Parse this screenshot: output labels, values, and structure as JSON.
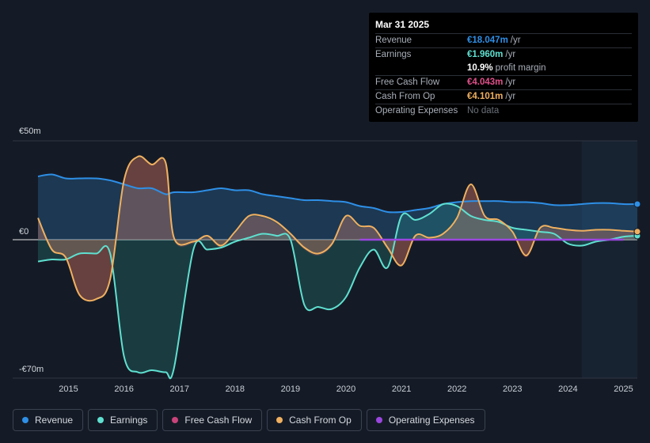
{
  "tooltip": {
    "date": "Mar 31 2025",
    "rows": [
      {
        "label": "Revenue",
        "value": "€18.047m",
        "unit": "/yr",
        "color": "#2e8fe6"
      },
      {
        "label": "Earnings",
        "value": "€1.960m",
        "unit": "/yr",
        "color": "#5fe0d0"
      },
      {
        "label": "",
        "value": "10.9%",
        "unit": "profit margin",
        "color": "#ffffff"
      },
      {
        "label": "Free Cash Flow",
        "value": "€4.043m",
        "unit": "/yr",
        "color": "#e0508a"
      },
      {
        "label": "Cash From Op",
        "value": "€4.101m",
        "unit": "/yr",
        "color": "#f0b060"
      },
      {
        "label": "Operating Expenses",
        "value": "No data",
        "unit": "",
        "color": "#6a7079"
      }
    ]
  },
  "legend": [
    {
      "label": "Revenue",
      "color": "#2e8fe6"
    },
    {
      "label": "Earnings",
      "color": "#5fe0d0"
    },
    {
      "label": "Free Cash Flow",
      "color": "#c9437a"
    },
    {
      "label": "Cash From Op",
      "color": "#f0b060"
    },
    {
      "label": "Operating Expenses",
      "color": "#9b46e0"
    }
  ],
  "chart_data": {
    "type": "area",
    "y_tick_labels": [
      "€50m",
      "€0",
      "-€70m"
    ],
    "y_ticks": [
      50,
      0,
      -70
    ],
    "ylim": [
      -70,
      50
    ],
    "xlim": [
      2014.45,
      2025.25
    ],
    "x_tick_labels": [
      "2015",
      "2016",
      "2017",
      "2018",
      "2019",
      "2020",
      "2021",
      "2022",
      "2023",
      "2024",
      "2025"
    ],
    "x_ticks": [
      2015,
      2016,
      2017,
      2018,
      2019,
      2020,
      2021,
      2022,
      2023,
      2024,
      2025
    ],
    "forecast_start": 2024.25,
    "series": [
      {
        "name": "Revenue",
        "color": "#2e8fe6",
        "x": [
          2014.45,
          2014.7,
          2014.95,
          2015.2,
          2015.5,
          2015.75,
          2016.0,
          2016.25,
          2016.5,
          2016.75,
          2016.9,
          2017.25,
          2017.5,
          2017.75,
          2018.0,
          2018.25,
          2018.5,
          2018.75,
          2019.0,
          2019.25,
          2019.5,
          2019.75,
          2020.0,
          2020.25,
          2020.5,
          2020.75,
          2021.0,
          2021.25,
          2021.5,
          2021.75,
          2022.0,
          2022.25,
          2022.5,
          2022.75,
          2023.0,
          2023.25,
          2023.5,
          2023.75,
          2024.0,
          2024.25,
          2024.5,
          2024.75,
          2025.0,
          2025.25
        ],
        "values": [
          32,
          33,
          31,
          31,
          31,
          30,
          28,
          26,
          26,
          23,
          24,
          24,
          25,
          26,
          25,
          25,
          23,
          22,
          21,
          20,
          20,
          19.5,
          19,
          17,
          16,
          14,
          14,
          15,
          16,
          18,
          19,
          19.5,
          19.5,
          19.5,
          19,
          19,
          18.5,
          17.5,
          17.5,
          18,
          18.5,
          18.5,
          18,
          18
        ]
      },
      {
        "name": "Earnings",
        "color": "#5fe0d0",
        "x": [
          2014.45,
          2014.7,
          2014.95,
          2015.2,
          2015.5,
          2015.75,
          2016.0,
          2016.25,
          2016.5,
          2016.75,
          2016.9,
          2017.25,
          2017.5,
          2017.75,
          2018.0,
          2018.25,
          2018.5,
          2018.75,
          2019.0,
          2019.25,
          2019.5,
          2019.75,
          2020.0,
          2020.25,
          2020.5,
          2020.75,
          2021.0,
          2021.25,
          2021.5,
          2021.75,
          2022.0,
          2022.25,
          2022.5,
          2022.75,
          2023.0,
          2023.25,
          2023.5,
          2023.75,
          2024.0,
          2024.25,
          2024.5,
          2024.75,
          2025.0,
          2025.25
        ],
        "values": [
          -11,
          -10,
          -10,
          -7,
          -7,
          -7,
          -59,
          -67,
          -66,
          -67,
          -65,
          -5,
          -5,
          -4,
          -1,
          1,
          3,
          2,
          0,
          -33,
          -34,
          -35,
          -29,
          -14,
          -5,
          -14,
          12,
          10,
          13,
          18,
          17,
          12,
          10,
          9,
          6,
          5,
          4,
          3,
          -2,
          -3,
          -1,
          0,
          1.5,
          2
        ]
      },
      {
        "name": "Free Cash Flow",
        "color": "#c9437a",
        "x": [
          2014.45,
          2014.7,
          2014.95,
          2015.2,
          2015.5,
          2015.75,
          2016.0,
          2016.25,
          2016.5,
          2016.75,
          2016.9,
          2017.25,
          2017.5,
          2017.75,
          2018.0,
          2018.25,
          2018.5,
          2018.75,
          2019.0,
          2019.25,
          2019.5,
          2019.75,
          2020.0,
          2020.25,
          2020.5,
          2020.75,
          2021.0,
          2021.25,
          2021.5,
          2021.75,
          2022.0,
          2022.25,
          2022.5,
          2022.75,
          2023.0,
          2023.25,
          2023.5,
          2023.75,
          2024.0,
          2024.25,
          2024.5,
          2024.75,
          2025.0,
          2025.25
        ],
        "values": [
          10,
          -5,
          -10,
          -28,
          -30,
          -20,
          30,
          41,
          38,
          38,
          0,
          -2,
          1,
          -4,
          3,
          11,
          11,
          8,
          2,
          -5,
          -8,
          -3,
          11,
          6,
          6,
          -5,
          -13,
          1,
          0,
          2,
          10,
          27,
          11,
          9,
          3,
          -9,
          5,
          5,
          4.5,
          4,
          4.5,
          4,
          4,
          4
        ]
      },
      {
        "name": "Cash From Op",
        "color": "#f0b060",
        "x": [
          2014.45,
          2014.7,
          2014.95,
          2015.2,
          2015.5,
          2015.75,
          2016.0,
          2016.25,
          2016.5,
          2016.75,
          2016.9,
          2017.25,
          2017.5,
          2017.75,
          2018.0,
          2018.25,
          2018.5,
          2018.75,
          2019.0,
          2019.25,
          2019.5,
          2019.75,
          2020.0,
          2020.25,
          2020.5,
          2020.75,
          2021.0,
          2021.25,
          2021.5,
          2021.75,
          2022.0,
          2022.25,
          2022.5,
          2022.75,
          2023.0,
          2023.25,
          2023.5,
          2023.75,
          2024.0,
          2024.25,
          2024.5,
          2024.75,
          2025.0,
          2025.25
        ],
        "values": [
          11,
          -5,
          -9,
          -28,
          -30,
          -20,
          30,
          42,
          38,
          39,
          1,
          -1,
          2,
          -3,
          4,
          12,
          12,
          9,
          3,
          -4,
          -7,
          -2,
          12,
          7,
          6,
          -4,
          -13,
          2,
          1,
          3,
          11,
          28,
          12,
          10,
          4,
          -8,
          6,
          6,
          5,
          4.5,
          5,
          5,
          4.5,
          4.1
        ]
      },
      {
        "name": "Operating Expenses",
        "color": "#9b46e0",
        "x": [
          2020.25,
          2025.0
        ],
        "values": [
          0,
          0
        ]
      }
    ]
  }
}
